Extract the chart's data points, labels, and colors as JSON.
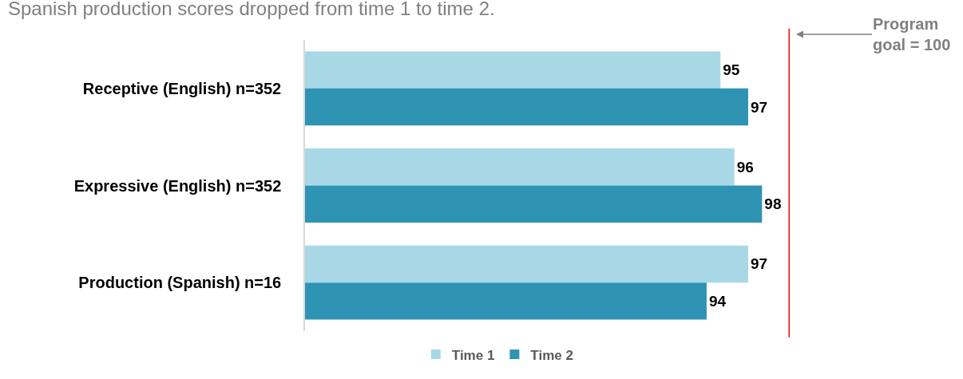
{
  "chart_data": {
    "type": "bar",
    "orientation": "horizontal",
    "title": "Spanish production scores dropped from time 1 to time 2.",
    "categories": [
      "Receptive (English) n=352",
      "Expressive (English) n=352",
      "Production (Spanish) n=16"
    ],
    "series": [
      {
        "name": "Time 1",
        "color": "#a8d8e6",
        "values": [
          95,
          96,
          97
        ]
      },
      {
        "name": "Time 2",
        "color": "#2f93b4",
        "values": [
          97,
          98,
          94
        ]
      }
    ],
    "xlim": [
      65,
      100
    ],
    "data_labels": true,
    "tick_labels": "y",
    "legend": "bottom",
    "ref_lines": [
      {
        "axis": "x",
        "value": 100,
        "label": "Program goal = 100",
        "color": "#ff0000"
      }
    ]
  }
}
